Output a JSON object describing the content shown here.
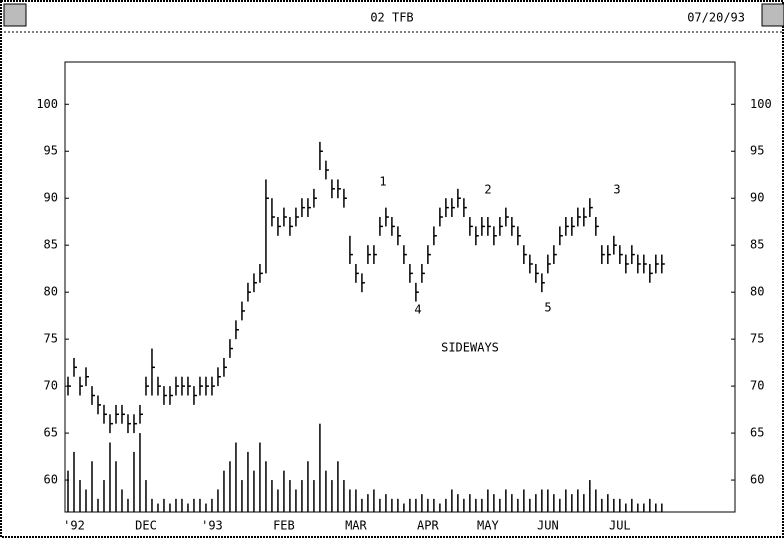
{
  "chart_data": {
    "type": "ohlc",
    "title": "02 TFB",
    "date": "07/20/93",
    "annotations": [
      "1",
      "2",
      "3",
      "4",
      "5",
      "SIDEWAYS"
    ],
    "xlim": [
      -0.5,
      111.2
    ],
    "xticks": [
      {
        "value": 1,
        "label": "'92"
      },
      {
        "value": 13,
        "label": "DEC"
      },
      {
        "value": 24,
        "label": "'93"
      },
      {
        "value": 36,
        "label": "FEB"
      },
      {
        "value": 48,
        "label": "MAR"
      },
      {
        "value": 60,
        "label": "APR"
      },
      {
        "value": 70,
        "label": "MAY"
      },
      {
        "value": 80,
        "label": "JUN"
      },
      {
        "value": 92,
        "label": "JUL"
      }
    ],
    "ylim": [
      56.6,
      104.5
    ],
    "yticks": [
      60,
      65,
      70,
      75,
      80,
      85,
      90,
      95,
      100
    ],
    "y2lim": [
      56.6,
      104.5
    ],
    "y2ticks": [
      60,
      65,
      70,
      75,
      80,
      85,
      90,
      95,
      100
    ],
    "color": "#000000",
    "high": [
      71,
      73,
      71,
      72,
      70,
      69,
      68,
      67,
      68,
      68,
      67,
      67,
      68,
      71,
      74,
      71,
      70,
      70,
      71,
      71,
      71,
      70,
      71,
      71,
      71,
      72,
      73,
      75,
      77,
      79,
      81,
      82,
      83,
      92,
      90,
      88,
      89,
      88,
      89,
      90,
      90,
      91,
      96,
      94,
      92,
      92,
      91,
      86,
      83,
      82,
      85,
      85,
      88,
      89,
      88,
      87,
      85,
      83,
      81,
      83,
      85,
      87,
      89,
      90,
      90,
      91,
      90,
      88,
      87,
      88,
      88,
      87,
      88,
      89,
      88,
      87,
      85,
      84,
      83,
      82,
      84,
      85,
      87,
      88,
      88,
      89,
      89,
      90,
      88,
      85,
      85,
      86,
      85,
      84,
      85,
      84,
      84,
      83,
      84,
      84
    ],
    "low": [
      69,
      71,
      69,
      70,
      68,
      67,
      66,
      65,
      66,
      66,
      65,
      65,
      66,
      69,
      69,
      69,
      68,
      68,
      69,
      69,
      69,
      68,
      69,
      69,
      69,
      70,
      71,
      73,
      75,
      77,
      79,
      80,
      81,
      82,
      87,
      86,
      87,
      86,
      87,
      88,
      88,
      89,
      93,
      92,
      90,
      90,
      89,
      83,
      81,
      80,
      83,
      83,
      86,
      87,
      86,
      85,
      83,
      81,
      79,
      81,
      83,
      85,
      87,
      88,
      88,
      89,
      88,
      86,
      85,
      86,
      86,
      85,
      86,
      87,
      86,
      85,
      83,
      82,
      81,
      80,
      82,
      83,
      85,
      86,
      86,
      87,
      87,
      88,
      86,
      83,
      83,
      84,
      83,
      82,
      83,
      82,
      82,
      81,
      82,
      82
    ],
    "close": [
      70,
      72,
      70,
      71,
      69,
      68,
      67,
      66,
      67,
      67,
      66,
      66,
      67,
      70,
      72,
      70,
      69,
      69,
      70,
      70,
      70,
      69,
      70,
      70,
      70,
      71,
      72,
      74,
      76,
      78,
      80,
      81,
      82,
      90,
      88,
      87,
      88,
      87,
      88,
      89,
      89,
      90,
      95,
      93,
      91,
      91,
      90,
      84,
      82,
      81,
      84,
      84,
      87,
      88,
      87,
      86,
      84,
      82,
      80,
      82,
      84,
      86,
      88,
      89,
      89,
      90,
      89,
      87,
      86,
      87,
      87,
      86,
      87,
      88,
      87,
      86,
      84,
      83,
      82,
      81,
      83,
      84,
      86,
      87,
      87,
      88,
      88,
      89,
      87,
      84,
      84,
      85,
      84,
      83,
      84,
      83,
      83,
      82,
      83,
      83
    ],
    "volume": [
      61,
      63,
      60,
      59,
      62,
      58,
      60,
      64,
      62,
      59,
      58,
      63,
      65,
      60,
      58,
      57.5,
      58,
      57.5,
      58,
      58,
      57.5,
      58,
      58,
      57.5,
      58,
      59,
      61,
      62,
      64,
      60,
      63,
      61,
      64,
      62,
      60,
      59,
      61,
      60,
      59,
      60,
      62,
      60,
      66,
      61,
      60,
      62,
      60,
      59,
      59,
      58,
      58.5,
      59,
      58,
      58.5,
      58,
      58,
      57.5,
      58,
      58,
      58.5,
      58,
      58,
      57.5,
      58,
      59,
      58.5,
      58,
      58.5,
      58,
      58,
      59,
      58.5,
      58,
      59,
      58.5,
      58,
      59,
      58,
      58.5,
      59,
      59,
      58.5,
      58,
      59,
      58.5,
      59,
      58.5,
      60,
      59,
      58,
      58.5,
      58,
      58,
      57.5,
      58,
      57.5,
      57.5,
      58,
      57.5,
      57.5
    ]
  }
}
